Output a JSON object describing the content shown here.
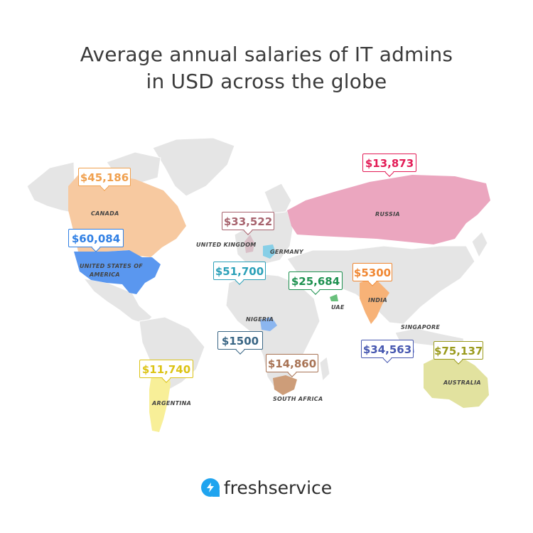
{
  "title": {
    "line1": "Average annual salaries of IT admins",
    "line2": "in USD across the globe"
  },
  "countries": {
    "canada": {
      "name": "CANADA",
      "salary": "$45,186",
      "color": "#f0a04e"
    },
    "usa": {
      "name_line1": "UNITED STATES OF",
      "name_line2": "AMERICA",
      "salary": "$60,084",
      "color": "#2f7fe4"
    },
    "russia": {
      "name": "RUSSIA",
      "salary": "$13,873",
      "color": "#e31b56"
    },
    "uk": {
      "name": "UNITED KINGDOM",
      "salary": "$33,522",
      "color": "#a7636e"
    },
    "germany": {
      "name": "GERMANY",
      "salary": "$51,700",
      "color": "#2ba0b8"
    },
    "uae": {
      "name": "UAE",
      "salary": "$25,684",
      "color": "#1e9150"
    },
    "india": {
      "name": "INDIA",
      "salary": "$5300",
      "color": "#f08732"
    },
    "nigeria": {
      "name": "NIGERIA",
      "salary": "$1500",
      "color": "#3a6685"
    },
    "singapore": {
      "name": "SINGAPORE",
      "salary": "$34,563",
      "color": "#4657b0"
    },
    "australia": {
      "name": "AUSTRALIA",
      "salary": "$75,137",
      "color": "#9a9a1c"
    },
    "argentina": {
      "name": "ARGENTINA",
      "salary": "$11,740",
      "color": "#dcc314"
    },
    "south_africa": {
      "name": "SOUTH AFRICA",
      "salary": "$14,860",
      "color": "#a87354"
    }
  },
  "brand": {
    "name": "freshservice",
    "icon": "lightning-bolt-icon",
    "color": "#1fa4ef"
  },
  "colors": {
    "land": "#e6e6e6",
    "title": "#3b3b3b"
  }
}
